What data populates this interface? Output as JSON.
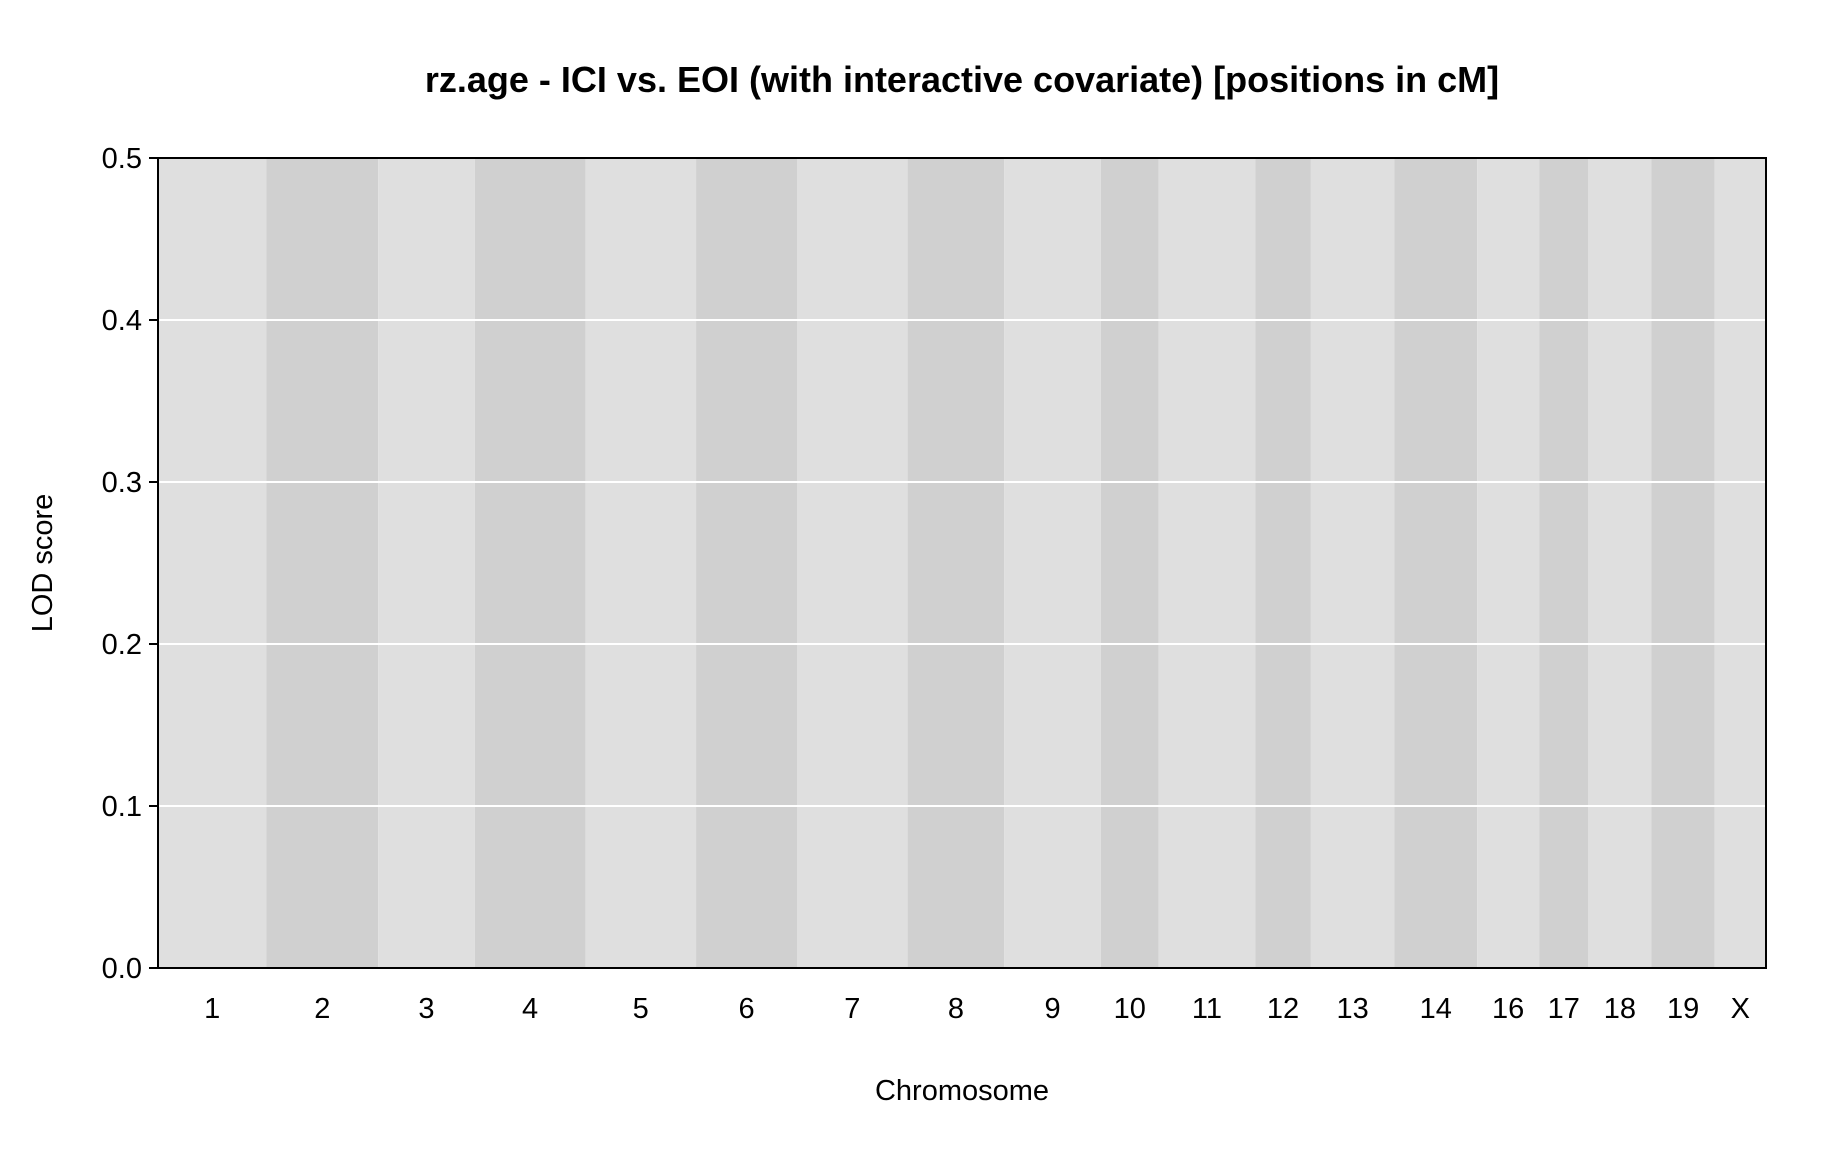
{
  "chart_data": {
    "type": "line",
    "title": "rz.age - ICI vs. EOI (with interactive covariate) [positions in cM]",
    "xlabel": "Chromosome",
    "ylabel": "LOD score",
    "ylim": [
      0,
      0.5
    ],
    "yticks": [
      "0.0",
      "0.1",
      "0.2",
      "0.3",
      "0.4",
      "0.5"
    ],
    "grid": "horizontal",
    "chromosomes": [
      {
        "name": "1",
        "length_cM": 95
      },
      {
        "name": "2",
        "length_cM": 98
      },
      {
        "name": "3",
        "length_cM": 84
      },
      {
        "name": "4",
        "length_cM": 97
      },
      {
        "name": "5",
        "length_cM": 97
      },
      {
        "name": "6",
        "length_cM": 88
      },
      {
        "name": "7",
        "length_cM": 97
      },
      {
        "name": "8",
        "length_cM": 84
      },
      {
        "name": "9",
        "length_cM": 84
      },
      {
        "name": "10",
        "length_cM": 48
      },
      {
        "name": "11",
        "length_cM": 84
      },
      {
        "name": "12",
        "length_cM": 46
      },
      {
        "name": "13",
        "length_cM": 72
      },
      {
        "name": "14",
        "length_cM": 71
      },
      {
        "name": "16",
        "length_cM": 52
      },
      {
        "name": "17",
        "length_cM": 40
      },
      {
        "name": "18",
        "length_cM": 53
      },
      {
        "name": "19",
        "length_cM": 53
      },
      {
        "name": "X",
        "length_cM": 42
      }
    ],
    "series": [
      {
        "values": [
          0,
          0,
          0,
          0,
          0,
          0,
          0,
          0,
          0,
          0,
          0,
          0,
          0,
          0,
          0,
          0,
          0,
          0,
          0
        ]
      }
    ],
    "colors": {
      "band_light": "#dfdfdf",
      "band_dark": "#d0d0d0",
      "grid": "#ffffff",
      "line": "#2a2a8a",
      "frame": "#000000"
    }
  }
}
